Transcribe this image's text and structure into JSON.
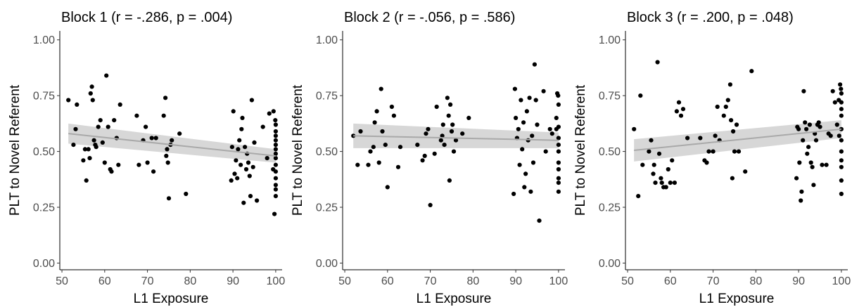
{
  "chart_data": [
    {
      "type": "scatter",
      "title": "Block 1 (r = -.286, p = .004)",
      "xlabel": "L1 Exposure",
      "ylabel": "PLT to Novel Referent",
      "xlim": [
        49.5,
        101.5
      ],
      "ylim": [
        -0.03,
        1.04
      ],
      "xticks": [
        "50",
        "60",
        "70",
        "80",
        "90",
        "100"
      ],
      "yticks": [
        "0.00",
        "0.25",
        "0.50",
        "0.75",
        "1.00"
      ],
      "grid": false,
      "fit": {
        "x": [
          51.5,
          100
        ],
        "y": [
          0.58,
          0.48
        ],
        "ci": [
          0.045,
          0.03
        ]
      },
      "points": [
        [
          51.5,
          0.73
        ],
        [
          52.7,
          0.53
        ],
        [
          53.2,
          0.6
        ],
        [
          53.5,
          0.71
        ],
        [
          55.0,
          0.46
        ],
        [
          55.4,
          0.51
        ],
        [
          55.7,
          0.37
        ],
        [
          56.2,
          0.51
        ],
        [
          56.5,
          0.47
        ],
        [
          56.7,
          0.76
        ],
        [
          57.0,
          0.79
        ],
        [
          57.2,
          0.73
        ],
        [
          57.5,
          0.55
        ],
        [
          57.8,
          0.53
        ],
        [
          58.0,
          0.52
        ],
        [
          58.5,
          0.61
        ],
        [
          59.0,
          0.64
        ],
        [
          59.5,
          0.54
        ],
        [
          60.0,
          0.45
        ],
        [
          60.4,
          0.84
        ],
        [
          60.8,
          0.61
        ],
        [
          61.3,
          0.42
        ],
        [
          61.6,
          0.41
        ],
        [
          62.2,
          0.64
        ],
        [
          62.8,
          0.56
        ],
        [
          63.2,
          0.44
        ],
        [
          63.6,
          0.71
        ],
        [
          67.5,
          0.66
        ],
        [
          68.0,
          0.44
        ],
        [
          69.0,
          0.55
        ],
        [
          69.6,
          0.61
        ],
        [
          70.0,
          0.45
        ],
        [
          71.0,
          0.56
        ],
        [
          71.4,
          0.41
        ],
        [
          72.0,
          0.56
        ],
        [
          73.8,
          0.66
        ],
        [
          74.2,
          0.74
        ],
        [
          74.4,
          0.48
        ],
        [
          74.6,
          0.51
        ],
        [
          74.8,
          0.45
        ],
        [
          75.0,
          0.29
        ],
        [
          75.4,
          0.53
        ],
        [
          75.7,
          0.55
        ],
        [
          77.5,
          0.58
        ],
        [
          79.0,
          0.31
        ],
        [
          89.6,
          0.37
        ],
        [
          89.8,
          0.52
        ],
        [
          90.1,
          0.68
        ],
        [
          90.4,
          0.4
        ],
        [
          90.7,
          0.46
        ],
        [
          91.0,
          0.38
        ],
        [
          91.2,
          0.51
        ],
        [
          91.5,
          0.55
        ],
        [
          91.8,
          0.44
        ],
        [
          92.0,
          0.6
        ],
        [
          92.2,
          0.65
        ],
        [
          92.5,
          0.27
        ],
        [
          92.8,
          0.52
        ],
        [
          93.1,
          0.42
        ],
        [
          93.3,
          0.49
        ],
        [
          93.6,
          0.45
        ],
        [
          93.9,
          0.39
        ],
        [
          94.1,
          0.3
        ],
        [
          94.4,
          0.73
        ],
        [
          94.7,
          0.43
        ],
        [
          95.0,
          0.54
        ],
        [
          95.6,
          0.28
        ],
        [
          97.0,
          0.61
        ],
        [
          98.0,
          0.47
        ],
        [
          98.5,
          0.67
        ],
        [
          99.5,
          0.68
        ],
        [
          99.7,
          0.22
        ],
        [
          99.9,
          0.64
        ],
        [
          100,
          0.62
        ],
        [
          100,
          0.59
        ],
        [
          100,
          0.57
        ],
        [
          100,
          0.55
        ],
        [
          100,
          0.53
        ],
        [
          100,
          0.51
        ],
        [
          100,
          0.49
        ],
        [
          100,
          0.47
        ],
        [
          100,
          0.44
        ],
        [
          100,
          0.41
        ],
        [
          100,
          0.38
        ],
        [
          100,
          0.35
        ],
        [
          100,
          0.33
        ],
        [
          100,
          0.3
        ],
        [
          99.4,
          0.42
        ]
      ]
    },
    {
      "type": "scatter",
      "title": "Block 2  (r = -.056, p = .586)",
      "xlabel": "L1 Exposure",
      "ylabel": "PLT to Novel Referent",
      "xlim": [
        49.5,
        101.5
      ],
      "ylim": [
        -0.03,
        1.04
      ],
      "xticks": [
        "50",
        "60",
        "70",
        "80",
        "90",
        "100"
      ],
      "yticks": [
        "0.00",
        "0.25",
        "0.50",
        "0.75",
        "1.00"
      ],
      "grid": false,
      "fit": {
        "x": [
          52,
          100
        ],
        "y": [
          0.57,
          0.55
        ],
        "ci": [
          0.055,
          0.035
        ]
      },
      "points": [
        [
          52.0,
          0.57
        ],
        [
          53.0,
          0.44
        ],
        [
          53.7,
          0.59
        ],
        [
          55.5,
          0.44
        ],
        [
          56.0,
          0.5
        ],
        [
          56.7,
          0.52
        ],
        [
          57.0,
          0.63
        ],
        [
          57.5,
          0.68
        ],
        [
          58.0,
          0.45
        ],
        [
          58.5,
          0.78
        ],
        [
          58.8,
          0.59
        ],
        [
          59.5,
          0.53
        ],
        [
          60.0,
          0.34
        ],
        [
          61.0,
          0.7
        ],
        [
          61.5,
          0.66
        ],
        [
          62.5,
          0.43
        ],
        [
          63.0,
          0.52
        ],
        [
          67.0,
          0.53
        ],
        [
          68.2,
          0.46
        ],
        [
          68.7,
          0.48
        ],
        [
          69.0,
          0.58
        ],
        [
          69.5,
          0.6
        ],
        [
          70.0,
          0.26
        ],
        [
          71.0,
          0.49
        ],
        [
          71.5,
          0.7
        ],
        [
          72.5,
          0.55
        ],
        [
          72.8,
          0.57
        ],
        [
          73.0,
          0.62
        ],
        [
          73.3,
          0.53
        ],
        [
          74.0,
          0.74
        ],
        [
          74.3,
          0.66
        ],
        [
          74.5,
          0.37
        ],
        [
          74.7,
          0.71
        ],
        [
          75.0,
          0.59
        ],
        [
          75.2,
          0.62
        ],
        [
          75.5,
          0.5
        ],
        [
          76.0,
          0.55
        ],
        [
          77.5,
          0.58
        ],
        [
          79.0,
          0.65
        ],
        [
          89.5,
          0.31
        ],
        [
          89.8,
          0.78
        ],
        [
          90.0,
          0.65
        ],
        [
          90.3,
          0.56
        ],
        [
          90.6,
          0.6
        ],
        [
          90.9,
          0.44
        ],
        [
          91.2,
          0.73
        ],
        [
          91.5,
          0.51
        ],
        [
          91.8,
          0.63
        ],
        [
          92.0,
          0.34
        ],
        [
          92.3,
          0.4
        ],
        [
          92.6,
          0.68
        ],
        [
          92.9,
          0.55
        ],
        [
          93.2,
          0.74
        ],
        [
          93.5,
          0.32
        ],
        [
          93.8,
          0.57
        ],
        [
          94.1,
          0.45
        ],
        [
          94.4,
          0.89
        ],
        [
          94.7,
          0.73
        ],
        [
          95.0,
          0.62
        ],
        [
          95.5,
          0.19
        ],
        [
          96.5,
          0.77
        ],
        [
          97.0,
          0.5
        ],
        [
          98.0,
          0.6
        ],
        [
          98.5,
          0.58
        ],
        [
          99.5,
          0.65
        ],
        [
          99.7,
          0.76
        ],
        [
          99.9,
          0.75
        ],
        [
          100,
          0.71
        ],
        [
          100,
          0.61
        ],
        [
          100,
          0.56
        ],
        [
          100,
          0.53
        ],
        [
          100,
          0.5
        ],
        [
          100,
          0.45
        ],
        [
          100,
          0.42
        ],
        [
          100,
          0.38
        ],
        [
          100,
          0.36
        ],
        [
          100,
          0.32
        ],
        [
          99.5,
          0.6
        ]
      ]
    },
    {
      "type": "scatter",
      "title": "Block 3  (r = .200, p = .048)",
      "xlabel": "L1 Exposure",
      "ylabel": "PLT to Novel Referent",
      "xlim": [
        49.5,
        101.5
      ],
      "ylim": [
        -0.03,
        1.04
      ],
      "xticks": [
        "50",
        "60",
        "70",
        "80",
        "90",
        "100"
      ],
      "yticks": [
        "0.00",
        "0.25",
        "0.50",
        "0.75",
        "1.00"
      ],
      "grid": false,
      "fit": {
        "x": [
          51.5,
          100
        ],
        "y": [
          0.505,
          0.6
        ],
        "ci": [
          0.05,
          0.04
        ]
      },
      "points": [
        [
          51.5,
          0.6
        ],
        [
          52.5,
          0.3
        ],
        [
          53.0,
          0.75
        ],
        [
          53.5,
          0.44
        ],
        [
          55.0,
          0.5
        ],
        [
          55.5,
          0.55
        ],
        [
          56.0,
          0.4
        ],
        [
          56.2,
          0.44
        ],
        [
          56.5,
          0.36
        ],
        [
          57.0,
          0.9
        ],
        [
          57.4,
          0.49
        ],
        [
          57.8,
          0.38
        ],
        [
          58.0,
          0.36
        ],
        [
          58.4,
          0.34
        ],
        [
          59.0,
          0.34
        ],
        [
          59.5,
          0.42
        ],
        [
          60.0,
          0.36
        ],
        [
          60.4,
          0.46
        ],
        [
          61.0,
          0.36
        ],
        [
          61.5,
          0.68
        ],
        [
          62.0,
          0.72
        ],
        [
          62.5,
          0.66
        ],
        [
          63.0,
          0.69
        ],
        [
          64.0,
          0.56
        ],
        [
          67.0,
          0.56
        ],
        [
          68.0,
          0.46
        ],
        [
          68.5,
          0.45
        ],
        [
          69.0,
          0.5
        ],
        [
          70.0,
          0.5
        ],
        [
          70.5,
          0.57
        ],
        [
          71.0,
          0.7
        ],
        [
          71.5,
          0.55
        ],
        [
          72.5,
          0.66
        ],
        [
          73.0,
          0.7
        ],
        [
          73.5,
          0.73
        ],
        [
          74.0,
          0.8
        ],
        [
          74.2,
          0.64
        ],
        [
          74.5,
          0.38
        ],
        [
          74.7,
          0.59
        ],
        [
          75.0,
          0.5
        ],
        [
          75.5,
          0.62
        ],
        [
          76.0,
          0.5
        ],
        [
          77.5,
          0.41
        ],
        [
          79.0,
          0.86
        ],
        [
          89.5,
          0.38
        ],
        [
          89.7,
          0.61
        ],
        [
          90.0,
          0.6
        ],
        [
          90.2,
          0.45
        ],
        [
          90.5,
          0.28
        ],
        [
          90.7,
          0.32
        ],
        [
          91.0,
          0.55
        ],
        [
          91.2,
          0.77
        ],
        [
          91.5,
          0.63
        ],
        [
          91.8,
          0.6
        ],
        [
          92.0,
          0.49
        ],
        [
          92.3,
          0.52
        ],
        [
          92.6,
          0.62
        ],
        [
          92.9,
          0.45
        ],
        [
          93.2,
          0.43
        ],
        [
          93.5,
          0.35
        ],
        [
          93.8,
          0.58
        ],
        [
          94.1,
          0.55
        ],
        [
          94.4,
          0.62
        ],
        [
          94.7,
          0.63
        ],
        [
          95.0,
          0.61
        ],
        [
          95.5,
          0.44
        ],
        [
          96.5,
          0.44
        ],
        [
          97.0,
          0.58
        ],
        [
          97.5,
          0.57
        ],
        [
          98.0,
          0.77
        ],
        [
          98.5,
          0.72
        ],
        [
          99.0,
          0.62
        ],
        [
          99.4,
          0.73
        ],
        [
          99.7,
          0.8
        ],
        [
          99.9,
          0.78
        ],
        [
          100,
          0.76
        ],
        [
          100,
          0.72
        ],
        [
          100,
          0.69
        ],
        [
          100,
          0.66
        ],
        [
          100,
          0.6
        ],
        [
          100,
          0.55
        ],
        [
          100,
          0.5
        ],
        [
          100,
          0.46
        ],
        [
          100,
          0.43
        ],
        [
          100,
          0.37
        ],
        [
          100,
          0.31
        ],
        [
          99.5,
          0.57
        ]
      ]
    }
  ]
}
